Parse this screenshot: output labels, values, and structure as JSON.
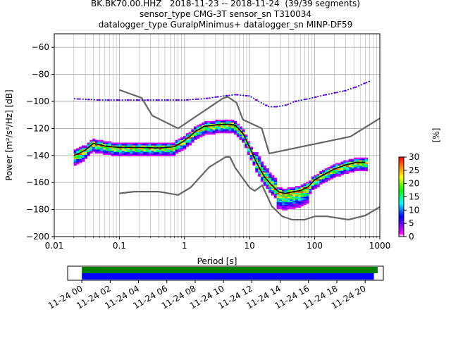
{
  "header": {
    "title_line1": "BK.BK70.00.HHZ   2018-11-23 -- 2018-11-24  (39/39 segments)",
    "title_line2": "sensor_type CMG-3T sensor_sn T310034",
    "title_line3": "datalogger_type GuralpMinimus+ datalogger_sn MINP-DF59"
  },
  "colors": {
    "model_curves": "#666666",
    "mean_curve": "#000000",
    "mode_curve": "#0000cc",
    "grid": "#b0b0b0",
    "timeline_green": "#008000",
    "timeline_blue": "#0000ff"
  },
  "chart_data": {
    "type": "heatmap",
    "xlabel": "Period [s]",
    "ylabel": "Power [m²/s⁴/Hz] [dB]",
    "x_scale": "log",
    "xlim": [
      0.01,
      1000
    ],
    "ylim": [
      -200,
      -50
    ],
    "x_ticks": [
      0.01,
      0.1,
      1,
      10,
      100,
      1000
    ],
    "x_tick_labels": [
      "0.01",
      "0.1",
      "1",
      "10",
      "100",
      "1000"
    ],
    "y_ticks": [
      -200,
      -180,
      -160,
      -140,
      -120,
      -100,
      -80,
      -60
    ],
    "y_tick_labels": [
      "−200",
      "−180",
      "−160",
      "−140",
      "−120",
      "−100",
      "−80",
      "−60"
    ],
    "grid": true,
    "colorbar": {
      "label": "[%]",
      "range": [
        0,
        30
      ],
      "ticks": [
        0,
        5,
        10,
        15,
        20,
        25,
        30
      ],
      "tick_labels": [
        "0",
        "5",
        "10",
        "15",
        "20",
        "25",
        "30"
      ],
      "colormap": [
        "#ffffff",
        "#ff00ff",
        "#0000ff",
        "#00ffff",
        "#00ff00",
        "#ffff00",
        "#ff8000",
        "#ff0000"
      ]
    },
    "mean_curve": {
      "x": [
        0.02,
        0.025,
        0.03,
        0.04,
        0.06,
        0.1,
        0.2,
        0.4,
        0.7,
        1.0,
        1.5,
        2.0,
        3.0,
        4.0,
        5.0,
        6.0,
        8.0,
        10.0,
        13.0,
        17.0,
        22.0,
        28.0,
        35.0,
        45.0,
        60.0,
        80.0,
        100.0,
        140.0,
        200.0,
        300.0,
        450.0,
        600.0
      ],
      "y": [
        -140,
        -138,
        -136,
        -131,
        -133,
        -134,
        -134,
        -134.5,
        -133.5,
        -129,
        -122,
        -118.5,
        -117.5,
        -117,
        -117,
        -117.5,
        -124,
        -134,
        -146,
        -156,
        -162,
        -167,
        -168,
        -167,
        -166,
        -163,
        -158,
        -154,
        -150,
        -147,
        -145,
        -145
      ]
    },
    "mode_curve": {
      "x": [
        0.02,
        0.03,
        0.05,
        0.08,
        0.1,
        0.2,
        0.4,
        1.0,
        2.0,
        4.0,
        6.0,
        10.0,
        15.0,
        20.0,
        25.0,
        35.0,
        50.0,
        80.0,
        150.0,
        300.0,
        450.0,
        700.0
      ],
      "y": [
        -98,
        -98.5,
        -99,
        -99,
        -99,
        -99,
        -99,
        -99,
        -98,
        -96,
        -95,
        -96,
        -101,
        -104,
        -104,
        -103,
        -100,
        -98,
        -95,
        -92,
        -89,
        -85
      ]
    },
    "nhnm": {
      "x": [
        0.1,
        0.22,
        0.32,
        0.8,
        3.8,
        4.6,
        6.3,
        7.9,
        15.4,
        20.0,
        354.8,
        1000.0
      ],
      "y": [
        -91.5,
        -97.4,
        -110.5,
        -120,
        -98,
        -96.5,
        -101,
        -113.5,
        -120,
        -138.5,
        -126,
        -112.5
      ]
    },
    "nlnm": {
      "x": [
        0.1,
        0.17,
        0.4,
        0.8,
        1.24,
        2.4,
        4.3,
        5.0,
        6.0,
        10.0,
        12.0,
        15.6,
        21.9,
        31.6,
        45.0,
        70.0,
        101.0,
        154.0,
        328.0,
        600.0,
        1000.0
      ],
      "y": [
        -168,
        -166.7,
        -166.7,
        -169.2,
        -163.7,
        -148.6,
        -141.1,
        -141.1,
        -149,
        -163.8,
        -166.2,
        -162.1,
        -177.5,
        -185,
        -187.5,
        -187.5,
        -185,
        -185,
        -187.5,
        -184.4,
        -178
      ]
    },
    "timeline": {
      "x_tick_labels": [
        "11-24 00",
        "11-24 02",
        "11-24 04",
        "11-24 06",
        "11-24 08",
        "11-24 10",
        "11-24 12",
        "11-24 14",
        "11-24 16",
        "11-24 18",
        "11-24 20"
      ],
      "data_start_fraction": 0.045,
      "data_end_fraction": 0.982,
      "psd_end_fraction": 0.97
    }
  }
}
